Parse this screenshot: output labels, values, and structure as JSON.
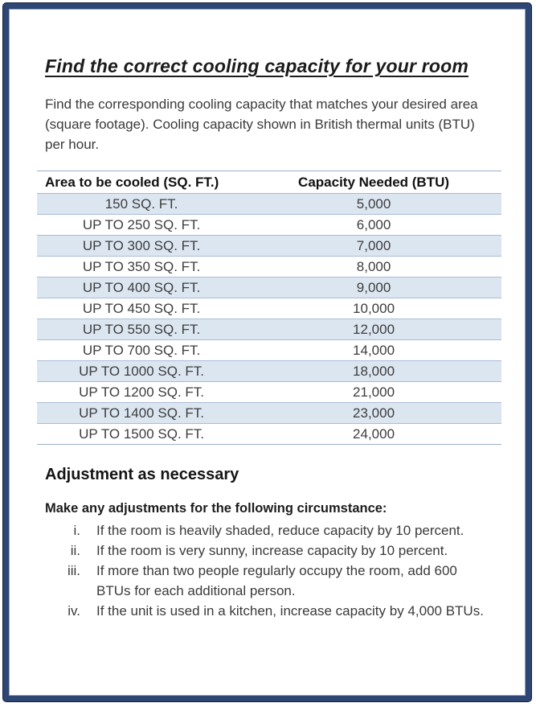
{
  "doc": {
    "title": "Find the correct cooling capacity for your room",
    "intro": "Find the corresponding cooling capacity that matches your desired area (square footage). Cooling capacity shown in British thermal units (BTU) per hour."
  },
  "table": {
    "headers": [
      "Area to be cooled (SQ. FT.)",
      "Capacity Needed (BTU)"
    ],
    "rows": [
      [
        "150 SQ. FT.",
        "5,000"
      ],
      [
        "UP TO 250 SQ. FT.",
        "6,000"
      ],
      [
        "UP TO 300 SQ. FT.",
        "7,000"
      ],
      [
        "UP TO 350 SQ. FT.",
        "8,000"
      ],
      [
        "UP TO 400 SQ. FT.",
        "9,000"
      ],
      [
        "UP TO 450 SQ. FT.",
        "10,000"
      ],
      [
        "UP TO 550 SQ. FT.",
        "12,000"
      ],
      [
        "UP TO 700 SQ. FT.",
        "14,000"
      ],
      [
        "UP TO 1000 SQ. FT.",
        "18,000"
      ],
      [
        "UP TO 1200 SQ. FT.",
        "21,000"
      ],
      [
        "UP TO 1400 SQ. FT.",
        "23,000"
      ],
      [
        "UP TO 1500 SQ. FT.",
        "24,000"
      ]
    ]
  },
  "adjustments": {
    "heading": "Adjustment as necessary",
    "intro": "Make any adjustments for the following circumstance:",
    "items": [
      {
        "numeral": "i.",
        "text": "If the room is heavily shaded, reduce capacity by 10 percent."
      },
      {
        "numeral": "ii.",
        "text": "If the room is very sunny, increase capacity by 10 percent."
      },
      {
        "numeral": "iii.",
        "text": "If more than two people regularly occupy the room, add 600 BTUs for each additional person."
      },
      {
        "numeral": "iv.",
        "text": "If the unit is used in a kitchen, increase capacity by 4,000 BTUs."
      }
    ]
  },
  "colors": {
    "frame_band": "#2d4674",
    "frame_outline": "#15213f",
    "row_alt_bg": "#dce6f1",
    "grid_line": "#a9bdd7",
    "title_text": "#1b1b1b",
    "body_text": "#3a3a3a"
  }
}
